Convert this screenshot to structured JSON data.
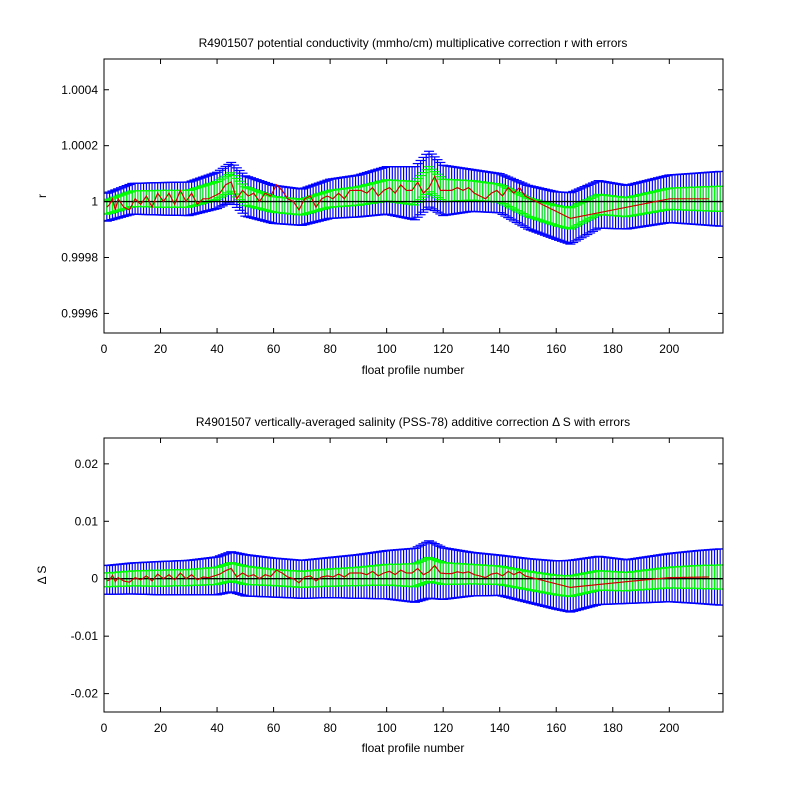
{
  "figure": {
    "background": "#ffffff"
  },
  "colors": {
    "outer_error": "#0000ff",
    "inner_error": "#00ff00",
    "correction": "#cc0000",
    "reference": "#000000"
  },
  "chart_data": [
    {
      "type": "line",
      "title": "R4901507 potential conductivity (mmho/cm) multiplicative correction r with errors",
      "xlabel": "float profile number",
      "ylabel": "r",
      "xlim": [
        0,
        219
      ],
      "ylim": [
        0.99953,
        1.00051
      ],
      "x_ticks": [
        0,
        20,
        40,
        60,
        80,
        100,
        120,
        140,
        160,
        180,
        200
      ],
      "y_ticks": [
        0.9996,
        0.9998,
        1,
        1.0002,
        1.0004
      ],
      "y_tick_labels": [
        "0.9996",
        "0.9998",
        "1",
        "1.0002",
        "1.0004"
      ],
      "reference_line": 1,
      "knots": {
        "x": [
          1,
          10,
          20,
          30,
          40,
          45,
          50,
          60,
          70,
          80,
          90,
          100,
          110,
          115,
          120,
          130,
          140,
          150,
          160,
          165,
          175,
          185,
          200,
          210,
          218
        ],
        "y": [
          0.99998,
          1.00001,
          1.00001,
          1.00001,
          1.00004,
          1.00007,
          1.00002,
          0.99999,
          0.99998,
          1.00001,
          1.00002,
          1.00004,
          1.00003,
          1.00008,
          1.00004,
          1.00004,
          1.00003,
          0.99998,
          0.99995,
          0.99994,
          0.99999,
          0.99998,
          1.00001,
          1.00001,
          1.00001
        ],
        "inner_err": [
          2.5e-05,
          2.8e-05,
          3e-05,
          3e-05,
          3.2e-05,
          3.3e-05,
          3.3e-05,
          2.8e-05,
          2.8e-05,
          3e-05,
          3.3e-05,
          3.8e-05,
          4.2e-05,
          4.5e-05,
          4e-05,
          3.5e-05,
          3.2e-05,
          3.3e-05,
          3.6e-05,
          3.8e-05,
          3.6e-05,
          3.4e-05,
          3.8e-05,
          4.2e-05,
          4.5e-05
        ],
        "outer_err": [
          5e-05,
          5.5e-05,
          5.8e-05,
          6e-05,
          6.5e-05,
          7e-05,
          7.2e-05,
          6.8e-05,
          6.5e-05,
          7e-05,
          7.5e-05,
          8.5e-05,
          9.5e-05,
          0.0001,
          9e-05,
          7.5e-05,
          7e-05,
          7.8e-05,
          8.5e-05,
          9.2e-05,
          8.5e-05,
          7.8e-05,
          8.5e-05,
          9.2e-05,
          9.8e-05
        ]
      },
      "profile_values": {
        "x": [
          1,
          2,
          3,
          4,
          5,
          7,
          9,
          11,
          13,
          15,
          17,
          19,
          21,
          23,
          25,
          27,
          29,
          31,
          33,
          35,
          37,
          39,
          41,
          43,
          45,
          47,
          49,
          51,
          53,
          55,
          57,
          59,
          61,
          63,
          65,
          67,
          69,
          71,
          73,
          75,
          77,
          79,
          81,
          83,
          85,
          87,
          89,
          91,
          93,
          95,
          97,
          99,
          101,
          103,
          105,
          107,
          109,
          111,
          113,
          115,
          117,
          119,
          121,
          123,
          125,
          127,
          129,
          131,
          133,
          135,
          137,
          139,
          141,
          143,
          145,
          147,
          149,
          165,
          185,
          200,
          214
        ],
        "y": [
          0.99998,
          0.99999,
          1.00001,
          0.99997,
          1.00001,
          0.99998,
          0.99997,
          1.00001,
          0.99999,
          1.00002,
          0.99998,
          1.00003,
          1,
          1.00003,
          0.99999,
          1.00004,
          1,
          1.00003,
          0.99999,
          1.00001,
          1.00001,
          1.00002,
          1.00003,
          1.00006,
          1.00007,
          1.00001,
          1.00004,
          1.00002,
          1.00003,
          1,
          1.00003,
          1.00002,
          1.00006,
          1.00004,
          1.00001,
          1,
          0.99997,
          1.00001,
          1.00002,
          0.99998,
          1.00001,
          1.00002,
          1.00001,
          1.00003,
          1.00001,
          1.00004,
          1.00004,
          1.00004,
          1.00003,
          1.00005,
          1.00002,
          1.00004,
          1.00005,
          1.00003,
          1.00006,
          1.00004,
          1.00004,
          1.00007,
          1.00003,
          1.00005,
          1.00009,
          1.00004,
          1.00004,
          1.00004,
          1.00005,
          1.00004,
          1.00005,
          1.00003,
          1.00002,
          1.00001,
          1.00003,
          1.00004,
          1.00002,
          1.00005,
          1.00003,
          1.00005,
          1.00002,
          0.99994,
          0.99998,
          1.00001,
          1.00001
        ]
      }
    },
    {
      "type": "line",
      "title": "R4901507 vertically-averaged salinity (PSS-78) additive correction Δ S with errors",
      "xlabel": "float profile number",
      "ylabel": "Δ S",
      "xlim": [
        0,
        219
      ],
      "ylim": [
        -0.0232,
        0.0245
      ],
      "x_ticks": [
        0,
        20,
        40,
        60,
        80,
        100,
        120,
        140,
        160,
        180,
        200
      ],
      "y_ticks": [
        -0.02,
        -0.01,
        0,
        0.01,
        0.02
      ],
      "y_tick_labels": [
        "-0.02",
        "-0.01",
        "0",
        "0.01",
        "0.02"
      ],
      "reference_line": 0,
      "knots": {
        "x": [
          1,
          10,
          20,
          30,
          40,
          45,
          50,
          60,
          70,
          80,
          90,
          100,
          110,
          115,
          120,
          130,
          140,
          150,
          160,
          165,
          175,
          185,
          200,
          210,
          218
        ],
        "y": [
          -0.0002,
          5e-05,
          0.0001,
          0.0002,
          0.0005,
          0.0012,
          0.0006,
          0.0002,
          -0.0001,
          0.0002,
          0.0004,
          0.0007,
          0.0006,
          0.0016,
          0.0009,
          0.0008,
          0.0006,
          -0.0003,
          -0.0011,
          -0.0013,
          -0.0003,
          -0.0005,
          0.0002,
          0.0003,
          0.0003
        ],
        "inner_err": [
          0.0012,
          0.0013,
          0.0014,
          0.0014,
          0.0015,
          0.0016,
          0.0016,
          0.0014,
          0.0014,
          0.0015,
          0.0016,
          0.0018,
          0.002,
          0.0021,
          0.0019,
          0.0017,
          0.0016,
          0.0016,
          0.0017,
          0.0018,
          0.0017,
          0.0016,
          0.0018,
          0.002,
          0.0021
        ],
        "outer_err": [
          0.0025,
          0.0027,
          0.0029,
          0.003,
          0.0033,
          0.0035,
          0.0036,
          0.0034,
          0.0033,
          0.0035,
          0.0038,
          0.0042,
          0.0047,
          0.005,
          0.0045,
          0.0038,
          0.0035,
          0.0038,
          0.0042,
          0.0045,
          0.0042,
          0.0038,
          0.0042,
          0.0046,
          0.0049
        ]
      },
      "profile_values": {
        "x": [
          1,
          2,
          3,
          4,
          5,
          7,
          9,
          11,
          13,
          15,
          17,
          19,
          21,
          23,
          25,
          27,
          29,
          31,
          33,
          35,
          37,
          39,
          41,
          43,
          45,
          47,
          49,
          51,
          53,
          55,
          57,
          59,
          61,
          63,
          65,
          67,
          69,
          71,
          73,
          75,
          77,
          79,
          81,
          83,
          85,
          87,
          89,
          91,
          93,
          95,
          97,
          99,
          101,
          103,
          105,
          107,
          109,
          111,
          113,
          115,
          117,
          119,
          121,
          123,
          125,
          127,
          129,
          131,
          133,
          135,
          137,
          139,
          141,
          143,
          145,
          147,
          149,
          165,
          185,
          200,
          214
        ],
        "y": [
          -0.0004,
          -0.0002,
          0.0006,
          -0.0005,
          0.0002,
          -0.0004,
          -0.0006,
          0.0002,
          -0.0002,
          0.0005,
          -0.0004,
          0.0008,
          0,
          0.0007,
          -0.0002,
          0.001,
          0,
          0.0007,
          -0.0002,
          0.0003,
          0.0002,
          0.0005,
          0.0008,
          0.0014,
          0.0018,
          0.0003,
          0.001,
          0.0004,
          0.0007,
          0,
          0.0007,
          0.0004,
          0.0015,
          0.001,
          0.0003,
          0,
          -0.0007,
          0.0003,
          0.0005,
          -0.0004,
          0.0003,
          0.0005,
          0.0003,
          0.0008,
          0.0003,
          0.001,
          0.001,
          0.001,
          0.0007,
          0.0013,
          0.0005,
          0.001,
          0.0013,
          0.0007,
          0.0015,
          0.001,
          0.001,
          0.0018,
          0.0007,
          0.0012,
          0.0023,
          0.001,
          0.0009,
          0.0009,
          0.0012,
          0.001,
          0.0012,
          0.0007,
          0.0005,
          0.0002,
          0.0008,
          0.001,
          0.0005,
          0.0013,
          0.0007,
          0.0012,
          0.0005,
          -0.0015,
          -0.0005,
          0.0002,
          0.0003
        ]
      }
    }
  ]
}
